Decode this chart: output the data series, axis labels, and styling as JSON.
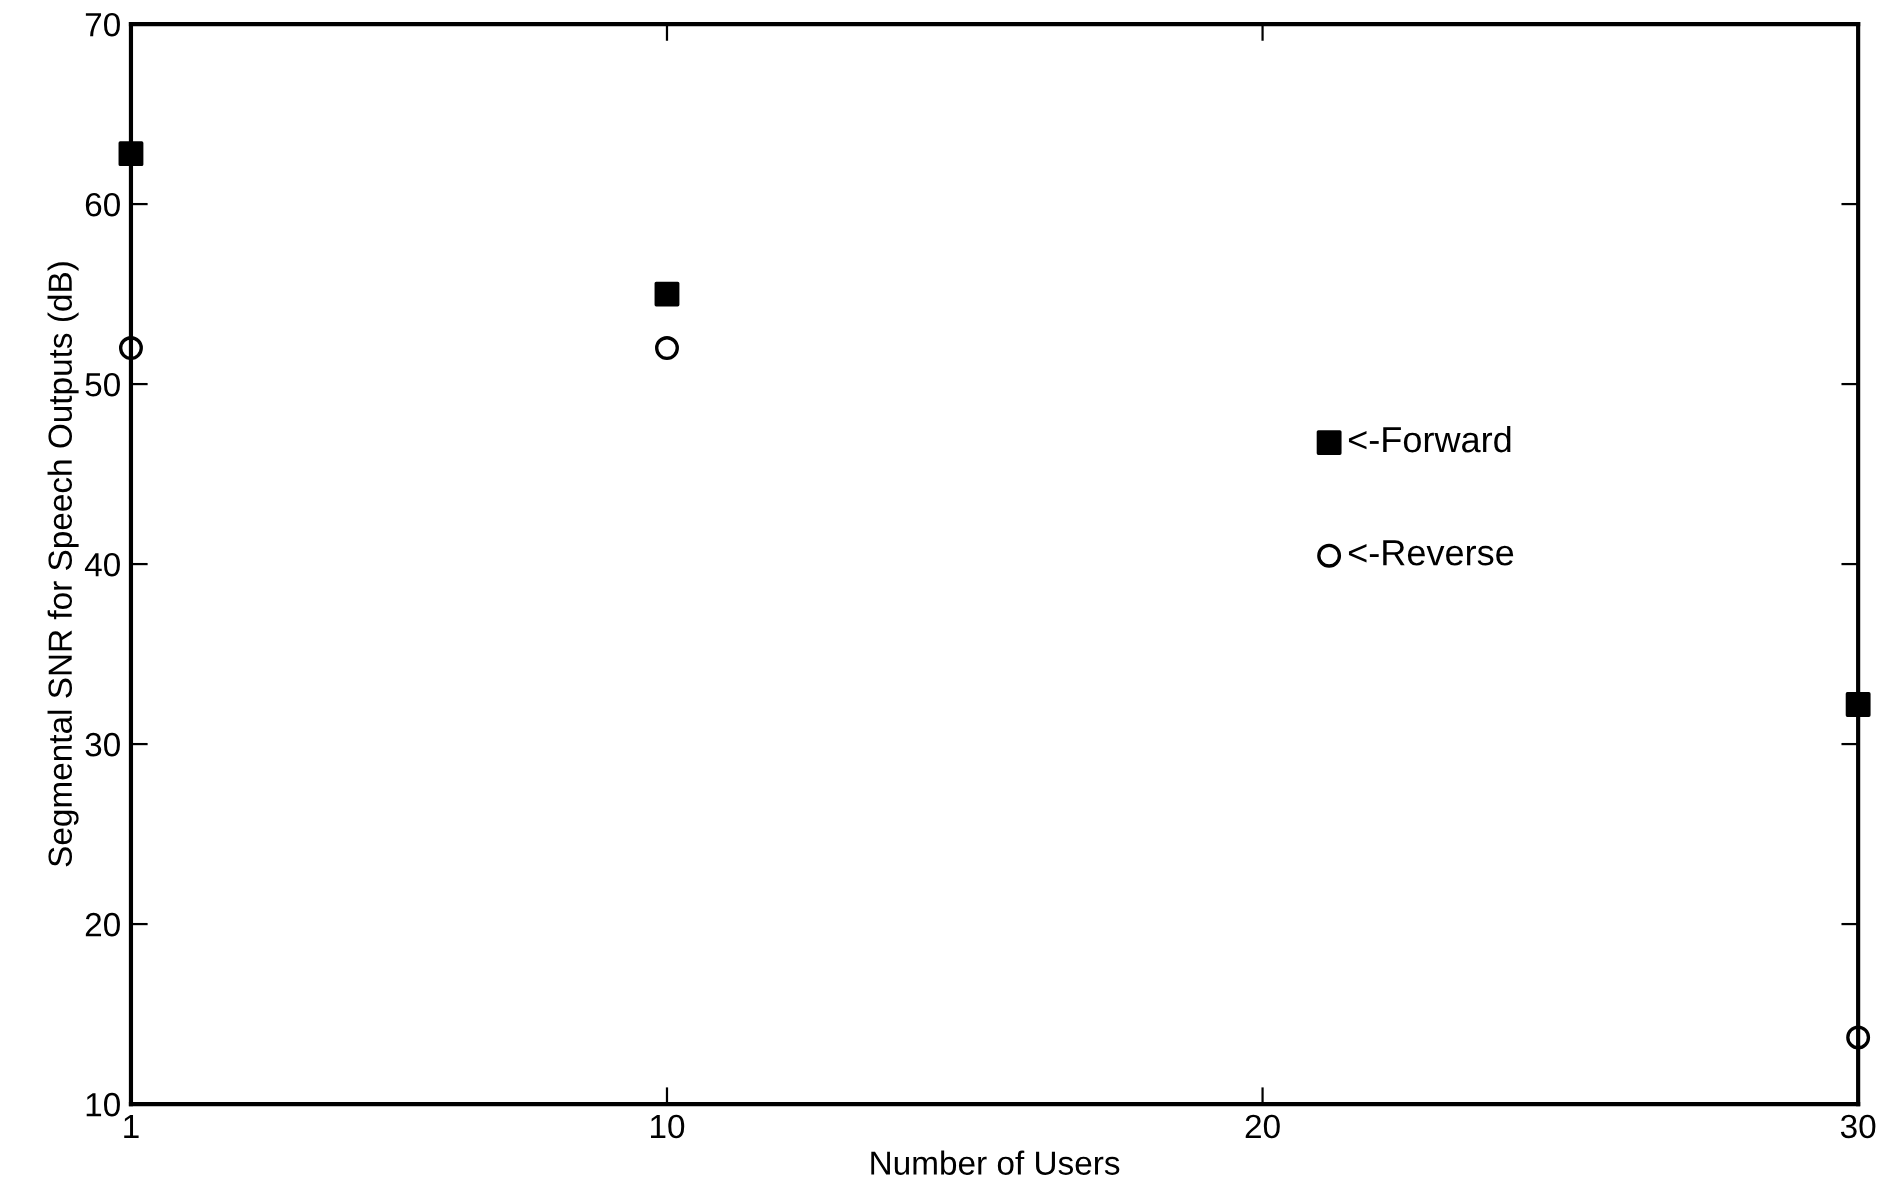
{
  "chart_data": {
    "type": "scatter",
    "xlabel": "Number of Users",
    "ylabel": "Segmental SNR for Speech Outputs (dB)",
    "x": [
      1,
      10,
      30
    ],
    "series": [
      {
        "name": "<-Forward",
        "color": "#000000",
        "marker": "square",
        "values": [
          62.8,
          55,
          32.2
        ]
      },
      {
        "name": "<-Reverse",
        "color": "#000000",
        "marker": "circle",
        "values": [
          52,
          52,
          13.7
        ]
      }
    ],
    "xlim": [
      1,
      30
    ],
    "xticks": [
      1,
      10,
      20,
      30
    ],
    "ylim": [
      10,
      70
    ],
    "yticks": [
      10,
      20,
      30,
      40,
      50,
      60,
      70
    ],
    "grid": false,
    "legend": "right"
  }
}
